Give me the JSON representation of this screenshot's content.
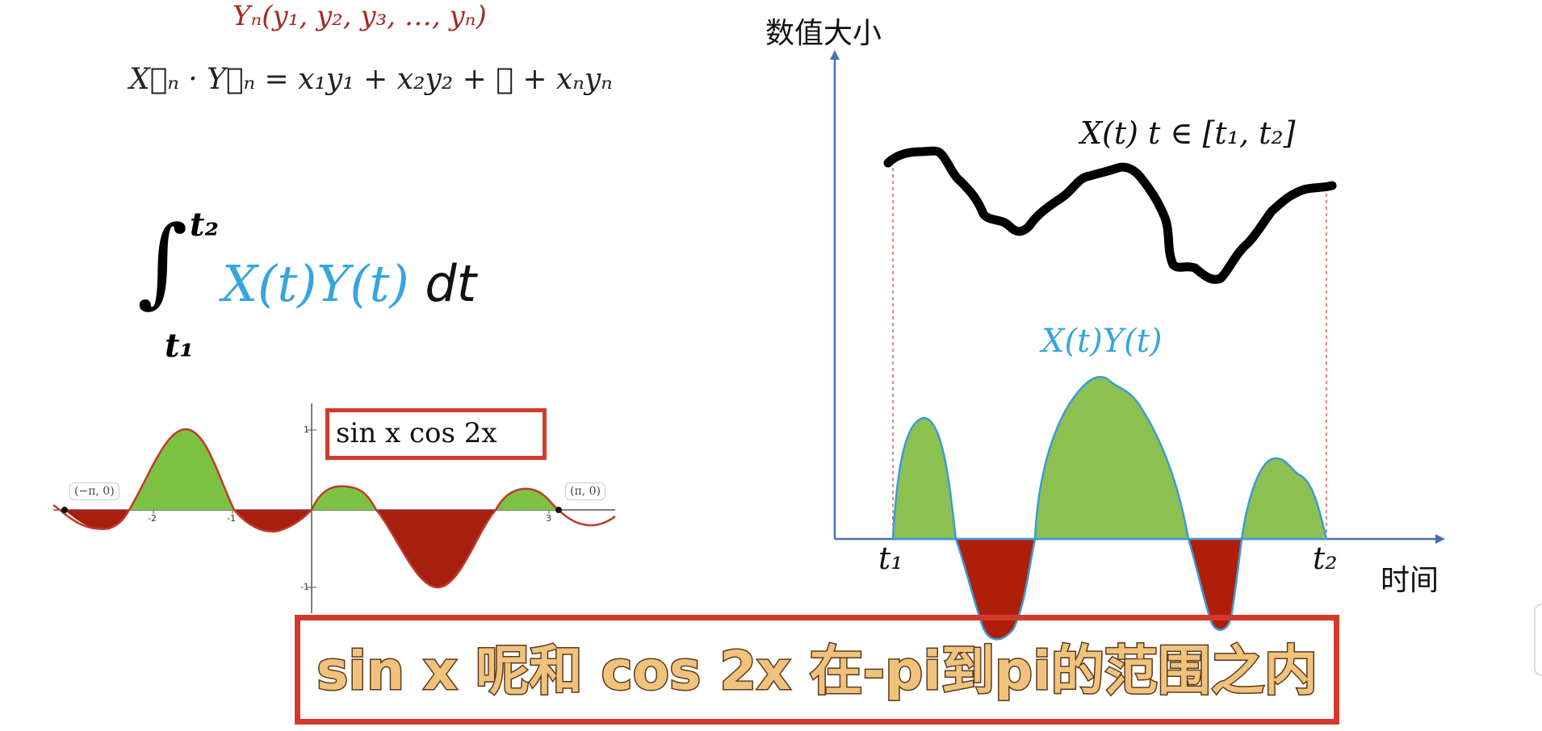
{
  "formulas": {
    "yn_vector": "Yₙ(y₁, y₂, y₃, …, yₙ)",
    "dot_product": "X⃗ₙ · Y⃗ₙ = x₁y₁ + x₂y₂ + ⋯ + xₙyₙ",
    "integral_upper": "t₂",
    "integral_lower": "t₁",
    "integral_body": "X(t)Y(t)",
    "integral_dt": "dt"
  },
  "left_plot": {
    "box_label": "sin x cos 2x",
    "point_neg": "(−π, 0)",
    "point_pos": "(π, 0)",
    "ticks": {
      "x_m2": "-2",
      "x_m1": "-1",
      "x_3": "3",
      "y_1": "1",
      "y_m1": "-1"
    },
    "colors": {
      "positive": "#7cc242",
      "negative": "#a71f0f",
      "curve": "#c0392b"
    }
  },
  "right_chart": {
    "y_axis_label": "数值大小",
    "x_axis_label": "时间",
    "x_t_label": "X(t)    t ∈ [t₁, t₂]",
    "xy_label": "X(t)Y(t)",
    "t1": "t₁",
    "t2": "t₂",
    "colors": {
      "axis": "#4a6fb5",
      "signal": "#000000",
      "positive": "#8cc152",
      "negative": "#b01e0a",
      "outline": "#3b9ad6",
      "guide": "#c0392b"
    }
  },
  "subtitle": "sin x 呢和 cos 2x 在-pi到pi的范围之内"
}
